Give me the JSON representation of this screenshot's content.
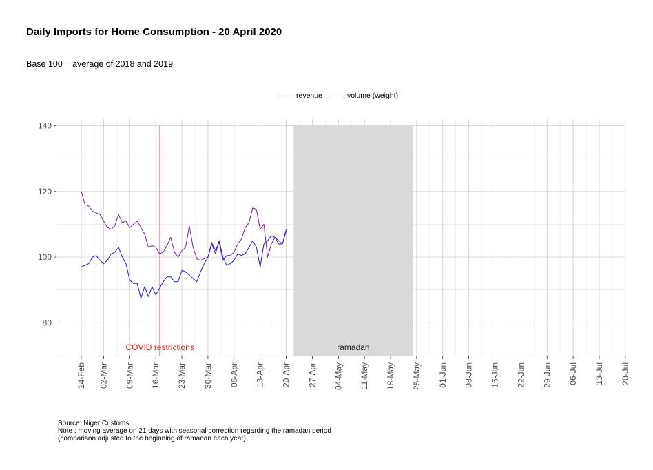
{
  "chart_data": {
    "type": "line",
    "title": "Daily Imports for Home Consumption - 20 April 2020",
    "subtitle": "Base 100 = average of 2018 and 2019",
    "xlabel": "",
    "ylabel": "",
    "ylim": [
      70,
      142
    ],
    "yticks": [
      80,
      100,
      120,
      140
    ],
    "x_tick_labels": [
      "24-Feb",
      "02-Mar",
      "09-Mar",
      "16-Mar",
      "23-Mar",
      "30-Mar",
      "06-Apr",
      "13-Apr",
      "20-Apr",
      "27-Apr",
      "04-May",
      "11-May",
      "18-May",
      "25-May",
      "01-Jun",
      "08-Jun",
      "15-Jun",
      "22-Jun",
      "29-Jun",
      "06-Jul",
      "13-Jul",
      "20-Jul"
    ],
    "grid": true,
    "legend_position": "top",
    "x_start": "24-Feb",
    "series": [
      {
        "name": "revenue",
        "color": "#7b1fa2",
        "values": [
          120,
          116,
          115.5,
          114,
          113.5,
          113,
          111,
          109,
          108.5,
          109.5,
          113,
          110.5,
          111,
          109,
          110,
          111,
          109,
          107,
          103,
          103.5,
          103,
          101,
          101.5,
          103.5,
          106,
          101.5,
          100,
          102,
          103,
          109.5,
          103,
          99.5,
          99,
          99.5,
          100,
          104.5,
          102,
          104.5,
          99,
          100.5,
          100.5,
          101.5,
          104,
          105.5,
          109,
          110.5,
          115,
          114.5,
          108.5,
          110,
          100,
          104,
          106,
          105,
          104,
          108
        ]
      },
      {
        "name": "volume (weight)",
        "color": "#1a1acd",
        "values": [
          97,
          97.5,
          98,
          100,
          100.5,
          99,
          98,
          99,
          101,
          101.5,
          103,
          100,
          98,
          93,
          92,
          92,
          87.5,
          91,
          88,
          91,
          88.5,
          90.5,
          92.5,
          94,
          94,
          92.5,
          92.5,
          96,
          95.5,
          94.5,
          93.5,
          92.5,
          95.5,
          98,
          100,
          104,
          101,
          105,
          100,
          97.5,
          98,
          99,
          101,
          100.5,
          101,
          103,
          105,
          103,
          97,
          104,
          105,
          106.5,
          106,
          104,
          104,
          108.5
        ]
      }
    ],
    "annotations": [
      {
        "type": "vline",
        "x": "18-Mar",
        "label": "COVID restrictions",
        "color": "#e8191d"
      },
      {
        "type": "shaded_band",
        "x_start": "22-Apr",
        "x_end": "24-May",
        "label": "ramadan",
        "color": "#d9d9d9"
      }
    ]
  },
  "caption": {
    "lines": [
      "Source: Niger Customs",
      "Note : moving average on 21 days with seasonal correction regarding the ramadan period",
      "(comparison adjusted to the beginning of ramadan each year)"
    ]
  }
}
